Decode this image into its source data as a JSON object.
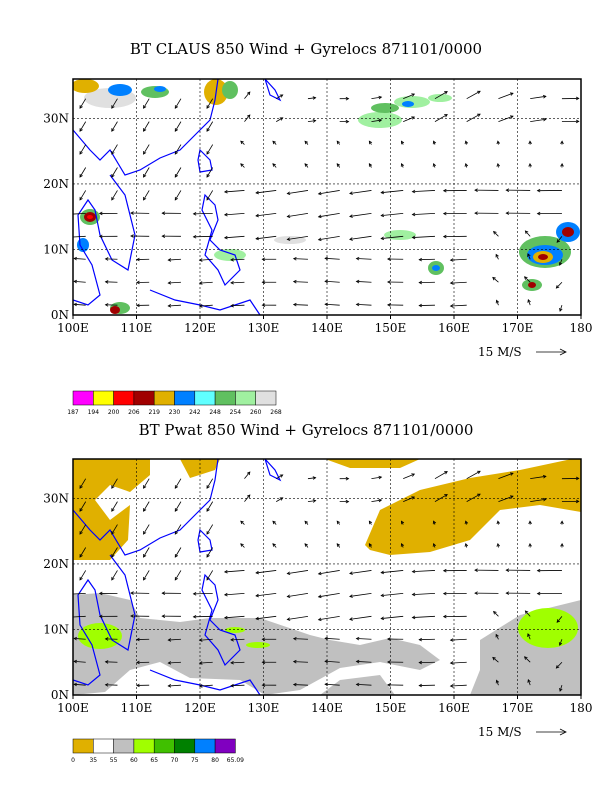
{
  "panels": [
    {
      "title": "BT CLAUS 850 Wind + Gyrelocs 871101/0000",
      "x_ticks": [
        "100E",
        "110E",
        "120E",
        "130E",
        "140E",
        "150E",
        "160E",
        "170E",
        "180"
      ],
      "y_ticks": [
        "0N",
        "10N",
        "20N",
        "30N"
      ],
      "ref_vector_label": "15 M/S",
      "colorbar_labels": [
        "187",
        "194",
        "200",
        "206",
        "219",
        "230",
        "242",
        "248",
        "254",
        "260",
        "268"
      ],
      "colorbar_colors": [
        "#ff00ff",
        "#ffff00",
        "#ff0000",
        "#a00000",
        "#e0b000",
        "#0080ff",
        "#60ffff",
        "#60c060",
        "#a0f0a0",
        "#e0e0e0"
      ]
    },
    {
      "title": "BT Pwat 850 Wind + Gyrelocs 871101/0000",
      "x_ticks": [
        "100E",
        "110E",
        "120E",
        "130E",
        "140E",
        "150E",
        "160E",
        "170E",
        "180"
      ],
      "y_ticks": [
        "0N",
        "10N",
        "20N",
        "30N"
      ],
      "ref_vector_label": "15 M/S",
      "colorbar_labels": [
        "0",
        "35",
        "55",
        "60",
        "65",
        "70",
        "75",
        "80",
        "65.09"
      ],
      "colorbar_colors": [
        "#e0b000",
        "#ffffff",
        "#c0c0c0",
        "#a0ff00",
        "#40c000",
        "#008000",
        "#0080ff",
        "#8000c0"
      ]
    }
  ],
  "chart_data": [
    {
      "type": "heatmap",
      "title": "BT CLAUS 850 Wind + Gyrelocs 871101/0000",
      "x_ticks": [
        "100E",
        "110E",
        "120E",
        "130E",
        "140E",
        "150E",
        "160E",
        "170E",
        "180"
      ],
      "y_ticks": [
        "0N",
        "10N",
        "20N",
        "30N"
      ],
      "xlim": [
        100,
        180
      ],
      "ylim": [
        0,
        36
      ],
      "grid": true,
      "field": "brightness temperature (shaded) with 850 hPa wind vectors",
      "reference_vector": "15 M/S",
      "color_levels": [
        187,
        194,
        200,
        206,
        219,
        230,
        242,
        248,
        254,
        260,
        268
      ]
    },
    {
      "type": "heatmap",
      "title": "BT Pwat 850 Wind + Gyrelocs 871101/0000",
      "x_ticks": [
        "100E",
        "110E",
        "120E",
        "130E",
        "140E",
        "150E",
        "160E",
        "170E",
        "180"
      ],
      "y_ticks": [
        "0N",
        "10N",
        "20N",
        "30N"
      ],
      "xlim": [
        100,
        180
      ],
      "ylim": [
        0,
        36
      ],
      "grid": true,
      "field": "precipitable water (shaded) with 850 hPa wind vectors",
      "reference_vector": "15 M/S",
      "color_levels": [
        "0",
        "35",
        "55",
        "60",
        "65",
        "70",
        "75",
        "80",
        "65.09"
      ]
    }
  ]
}
